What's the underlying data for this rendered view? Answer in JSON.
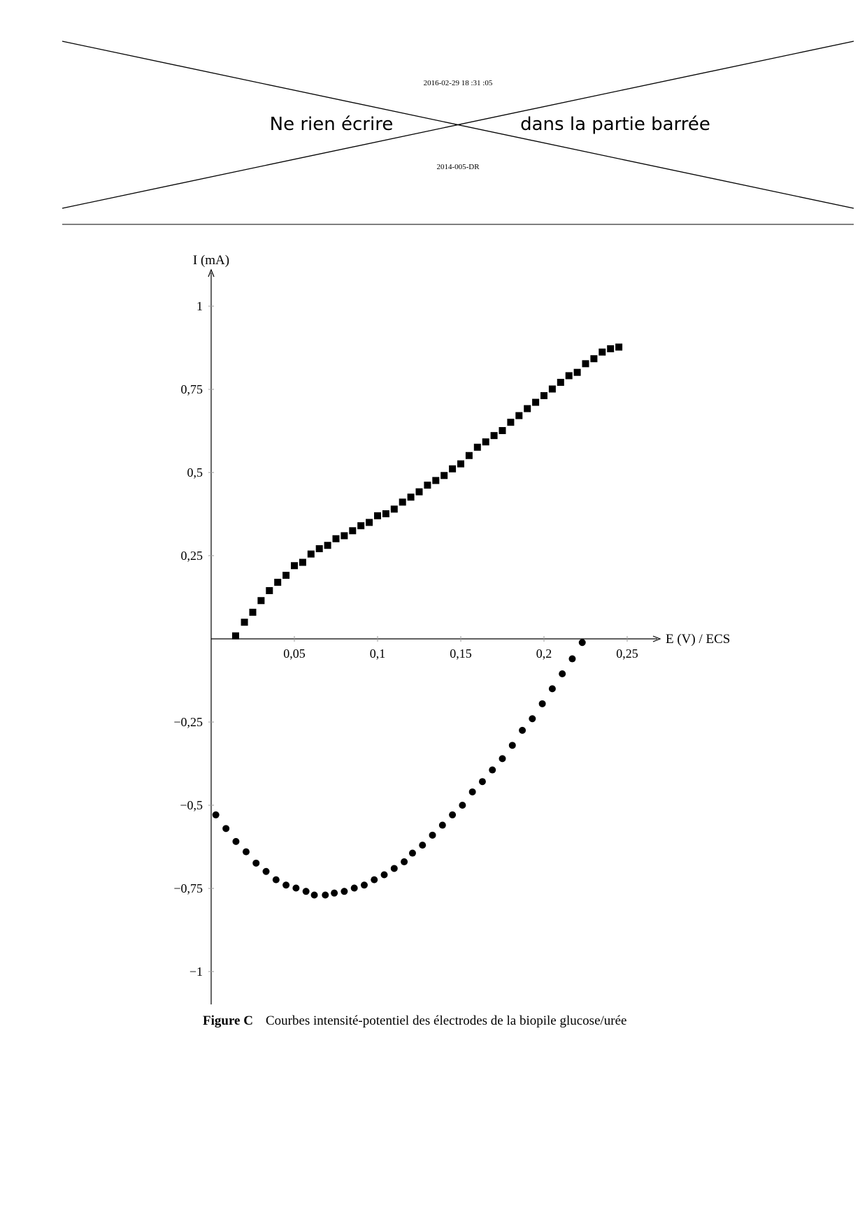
{
  "header": {
    "timestamp": "2016-02-29 18 :31 :05",
    "warning_left": "Ne rien écrire",
    "warning_right": "dans la partie barrée",
    "code": "2014-005-DR"
  },
  "caption": {
    "label": "Figure C",
    "text": "Courbes intensité-potentiel des électrodes de la biopile glucose/urée"
  },
  "chart_data": {
    "type": "scatter",
    "title": "",
    "xlabel": "E (V) / ECS",
    "ylabel": "I (mA)",
    "xlim": [
      0,
      0.26
    ],
    "ylim": [
      -1.1,
      1.1
    ],
    "grid": false,
    "x_ticks": [
      0.05,
      0.1,
      0.15,
      0.2,
      0.25
    ],
    "x_tick_labels": [
      "0,05",
      "0,1",
      "0,15",
      "0,2",
      "0,25"
    ],
    "y_ticks": [
      1,
      0.75,
      0.5,
      0.25,
      -0.25,
      -0.5,
      -0.75,
      -1
    ],
    "y_tick_labels": [
      "1",
      "0,75",
      "0,5",
      "0,25",
      "−0,25",
      "−0,5",
      "−0,75",
      "−1"
    ],
    "series": [
      {
        "marker": "square",
        "color": "#000000",
        "x": [
          0.0147,
          0.02,
          0.025,
          0.03,
          0.035,
          0.04,
          0.045,
          0.05,
          0.055,
          0.06,
          0.065,
          0.07,
          0.075,
          0.08,
          0.085,
          0.09,
          0.095,
          0.1,
          0.105,
          0.11,
          0.115,
          0.12,
          0.125,
          0.13,
          0.135,
          0.14,
          0.145,
          0.15,
          0.155,
          0.16,
          0.165,
          0.17,
          0.175,
          0.18,
          0.185,
          0.19,
          0.195,
          0.2,
          0.205,
          0.21,
          0.215,
          0.22,
          0.225,
          0.23,
          0.235,
          0.24,
          0.245
        ],
        "y": [
          0.009,
          0.05,
          0.08,
          0.115,
          0.145,
          0.17,
          0.191,
          0.22,
          0.23,
          0.255,
          0.271,
          0.281,
          0.301,
          0.31,
          0.325,
          0.34,
          0.35,
          0.37,
          0.376,
          0.39,
          0.411,
          0.426,
          0.442,
          0.462,
          0.476,
          0.491,
          0.511,
          0.526,
          0.551,
          0.576,
          0.592,
          0.611,
          0.626,
          0.651,
          0.671,
          0.692,
          0.711,
          0.731,
          0.751,
          0.771,
          0.791,
          0.801,
          0.827,
          0.842,
          0.862,
          0.872,
          0.877
        ]
      },
      {
        "marker": "circle",
        "color": "#000000",
        "x": [
          0.0028,
          0.0089,
          0.0149,
          0.021,
          0.027,
          0.033,
          0.039,
          0.045,
          0.051,
          0.057,
          0.062,
          0.0686,
          0.074,
          0.08,
          0.086,
          0.092,
          0.098,
          0.104,
          0.11,
          0.116,
          0.121,
          0.127,
          0.133,
          0.139,
          0.145,
          0.151,
          0.157,
          0.163,
          0.169,
          0.175,
          0.181,
          0.187,
          0.193,
          0.199,
          0.205,
          0.211,
          0.217,
          0.223
        ],
        "y": [
          -0.529,
          -0.57,
          -0.609,
          -0.64,
          -0.674,
          -0.699,
          -0.724,
          -0.74,
          -0.749,
          -0.759,
          -0.77,
          -0.77,
          -0.764,
          -0.759,
          -0.749,
          -0.74,
          -0.724,
          -0.709,
          -0.69,
          -0.67,
          -0.644,
          -0.62,
          -0.59,
          -0.56,
          -0.529,
          -0.5,
          -0.46,
          -0.429,
          -0.394,
          -0.36,
          -0.32,
          -0.275,
          -0.24,
          -0.195,
          -0.15,
          -0.105,
          -0.06,
          -0.011
        ]
      }
    ]
  }
}
